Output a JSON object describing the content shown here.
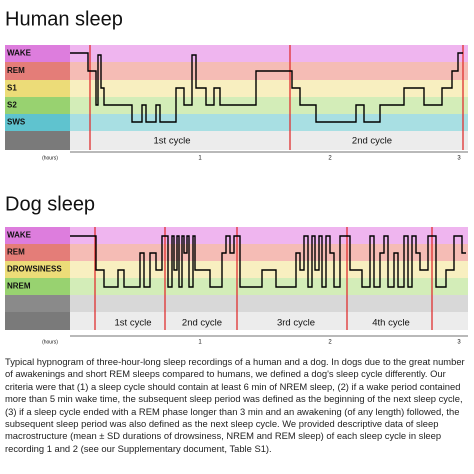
{
  "panels": [
    {
      "title": "Human sleep",
      "stages": [
        "WAKE",
        "REM",
        "S1",
        "S2",
        "SWS"
      ],
      "cycles": [
        "1st cycle",
        "2nd cycle"
      ],
      "axis": {
        "unit": "(hours)",
        "ticks": [
          "1",
          "2",
          "3"
        ]
      }
    },
    {
      "title": "Dog sleep",
      "stages": [
        "WAKE",
        "REM",
        "DROWSINESS",
        "NREM"
      ],
      "cycles": [
        "1st cycle",
        "2nd cycle",
        "3rd cycle",
        "4th cycle"
      ],
      "axis": {
        "unit": "(hours)",
        "ticks": [
          "1",
          "2",
          "3"
        ]
      }
    }
  ],
  "caption": "Typical hypnogram of three-hour-long sleep recordings of a human and a dog. In dogs due to the great number of awakenings and short REM sleeps compared to humans, we defined a dog's sleep cycle differently. Our criteria were that (1) a sleep cycle should contain at least 6 min of NREM sleep, (2) if a wake period contained more than 5 min wake time, the subsequent sleep period was defined as the beginning of the next sleep cycle, (3) if a sleep cycle ended with a REM phase longer than 3 min and an awakening (of any length) followed, the subsequent sleep period was also defined as the next sleep cycle. We provided descriptive data of sleep macrostructure (mean ± SD durations of drowsiness, NREM and REM sleep) of each sleep cycle in sleep recording 1 and 2 (see our Supplementary document, Table S1)."
}
